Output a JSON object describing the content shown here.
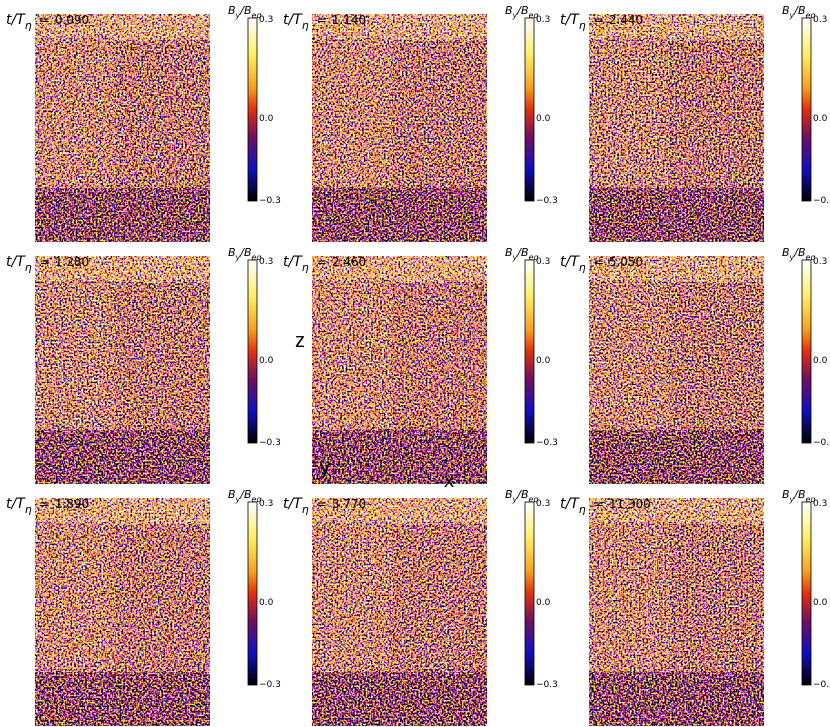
{
  "time_label": {
    "main": "t/T",
    "sub": "η",
    "eq": "="
  },
  "colorbar": {
    "label": {
      "b1": "B",
      "s1": "y",
      "b2": "/B",
      "s2": "eq"
    },
    "ticks": [
      "0.3",
      "0.0",
      "−0.3"
    ]
  },
  "panels": [
    {
      "time": "0.090"
    },
    {
      "time": "1.140"
    },
    {
      "time": "2.440"
    },
    {
      "time": "1.280"
    },
    {
      "time": "2.460"
    },
    {
      "time": "5.050"
    },
    {
      "time": "1.890"
    },
    {
      "time": "3.770"
    },
    {
      "time": "11.300"
    }
  ],
  "axis_labels": {
    "x": "x",
    "y": "y",
    "z": "z"
  }
}
